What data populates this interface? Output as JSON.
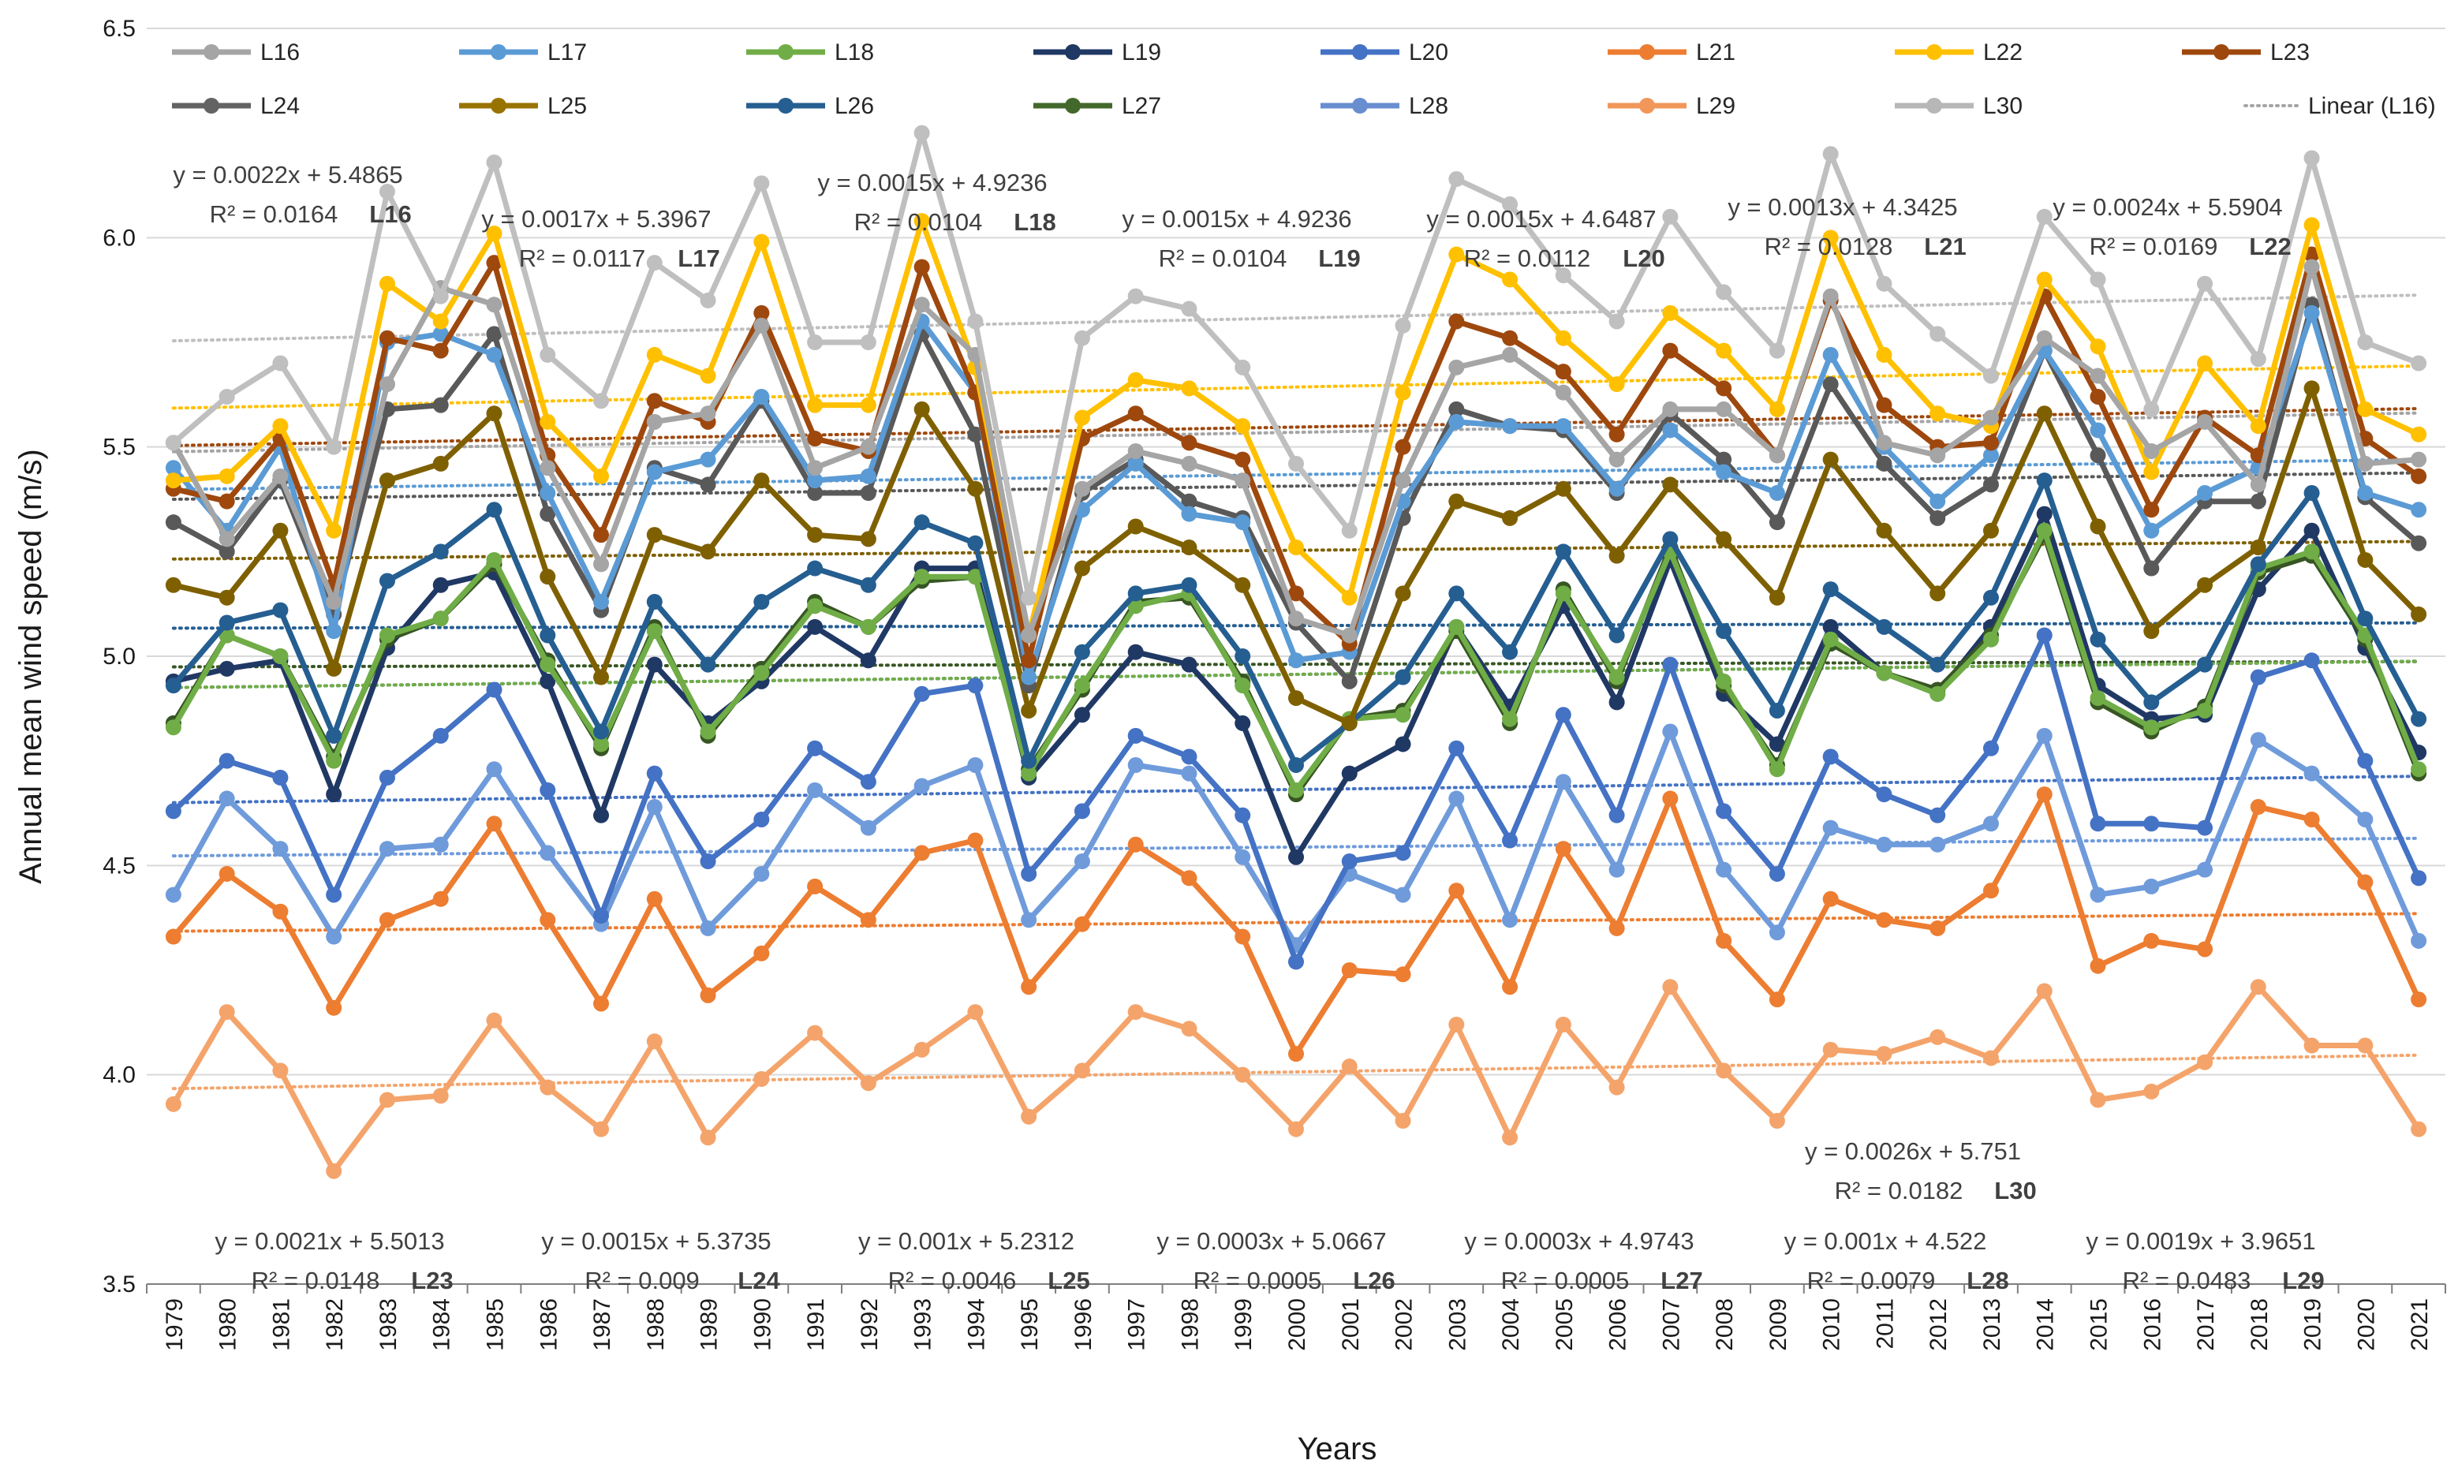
{
  "chart_data": {
    "type": "line",
    "title": "",
    "xlabel": "Years",
    "ylabel": "Annual mean wind speed (m/s)",
    "ylim": [
      3.5,
      6.5
    ],
    "yticks": [
      "3.5",
      "4.0",
      "4.5",
      "5.0",
      "5.5",
      "6.0",
      "6.5"
    ],
    "grid": "horizontal",
    "legend_position": "top",
    "x": [
      "1979",
      "1980",
      "1981",
      "1982",
      "1983",
      "1984",
      "1985",
      "1986",
      "1987",
      "1988",
      "1989",
      "1990",
      "1991",
      "1992",
      "1993",
      "1994",
      "1995",
      "1996",
      "1997",
      "1998",
      "1999",
      "2000",
      "2001",
      "2002",
      "2003",
      "2004",
      "2005",
      "2006",
      "2007",
      "2008",
      "2009",
      "2010",
      "2011",
      "2012",
      "2013",
      "2014",
      "2015",
      "2016",
      "2017",
      "2018",
      "2019",
      "2020",
      "2021"
    ],
    "series": [
      {
        "name": "L29",
        "color": "#F4A46B",
        "trend": {
          "slope": 0.0019,
          "intercept": 3.9651
        },
        "values": [
          3.93,
          4.15,
          4.01,
          3.77,
          3.94,
          3.95,
          4.13,
          3.97,
          3.87,
          4.08,
          3.85,
          3.99,
          4.1,
          3.98,
          4.06,
          4.15,
          3.9,
          4.01,
          4.15,
          4.11,
          4.0,
          3.87,
          4.02,
          3.89,
          4.12,
          3.85,
          4.12,
          3.97,
          4.21,
          4.01,
          3.89,
          4.06,
          4.05,
          4.09,
          4.04,
          4.2,
          3.94,
          3.96,
          4.03,
          4.21,
          4.07,
          4.07,
          3.87
        ]
      },
      {
        "name": "L21",
        "color": "#ED7D31",
        "trend": {
          "slope": 0.001,
          "intercept": 4.342
        },
        "values": [
          4.33,
          4.48,
          4.39,
          4.16,
          4.37,
          4.42,
          4.6,
          4.37,
          4.17,
          4.42,
          4.19,
          4.29,
          4.45,
          4.37,
          4.53,
          4.56,
          4.21,
          4.36,
          4.55,
          4.47,
          4.33,
          4.05,
          4.25,
          4.24,
          4.44,
          4.21,
          4.54,
          4.35,
          4.66,
          4.32,
          4.18,
          4.42,
          4.37,
          4.35,
          4.44,
          4.67,
          4.26,
          4.32,
          4.3,
          4.64,
          4.61,
          4.46,
          4.18
        ]
      },
      {
        "name": "L28",
        "color": "#6F9BDB",
        "trend": {
          "slope": 0.001,
          "intercept": 4.522
        },
        "values": [
          4.43,
          4.66,
          4.54,
          4.33,
          4.54,
          4.55,
          4.73,
          4.53,
          4.36,
          4.64,
          4.35,
          4.48,
          4.68,
          4.59,
          4.69,
          4.74,
          4.37,
          4.51,
          4.74,
          4.72,
          4.52,
          4.31,
          4.48,
          4.43,
          4.66,
          4.37,
          4.7,
          4.49,
          4.82,
          4.49,
          4.34,
          4.59,
          4.55,
          4.55,
          4.6,
          4.81,
          4.43,
          4.45,
          4.49,
          4.8,
          4.72,
          4.61,
          4.32
        ]
      },
      {
        "name": "L20",
        "color": "#4472C4",
        "trend": {
          "slope": 0.0015,
          "intercept": 4.6487
        },
        "values": [
          4.63,
          4.75,
          4.71,
          4.43,
          4.71,
          4.81,
          4.92,
          4.68,
          4.38,
          4.72,
          4.51,
          4.61,
          4.78,
          4.7,
          4.91,
          4.93,
          4.48,
          4.63,
          4.81,
          4.76,
          4.62,
          4.27,
          4.51,
          4.53,
          4.78,
          4.56,
          4.86,
          4.62,
          4.98,
          4.63,
          4.48,
          4.76,
          4.67,
          4.62,
          4.78,
          5.05,
          4.6,
          4.6,
          4.59,
          4.95,
          4.99,
          4.75,
          4.47
        ]
      },
      {
        "name": "L19",
        "color": "#203864",
        "trend": {
          "slope": 0.0015,
          "intercept": 4.9236
        },
        "values": [
          4.94,
          4.97,
          4.99,
          4.67,
          5.02,
          5.17,
          5.2,
          4.94,
          4.62,
          4.98,
          4.84,
          4.94,
          5.07,
          4.99,
          5.21,
          5.21,
          4.71,
          4.86,
          5.01,
          4.98,
          4.84,
          4.52,
          4.72,
          4.79,
          5.07,
          4.88,
          5.12,
          4.89,
          5.23,
          4.91,
          4.79,
          5.07,
          4.96,
          4.91,
          5.07,
          5.34,
          4.93,
          4.85,
          4.86,
          5.16,
          5.3,
          5.02,
          4.77
        ]
      },
      {
        "name": "L27",
        "color": "#375623",
        "trend": {
          "slope": 0.0003,
          "intercept": 4.9743
        },
        "values": [
          4.84,
          5.05,
          5.0,
          4.76,
          5.04,
          5.09,
          5.22,
          4.99,
          4.78,
          5.07,
          4.81,
          4.97,
          5.13,
          5.07,
          5.18,
          5.19,
          4.73,
          4.92,
          5.13,
          5.14,
          4.94,
          4.67,
          4.85,
          4.87,
          5.06,
          4.84,
          5.16,
          4.94,
          5.26,
          4.93,
          4.74,
          5.03,
          4.96,
          4.92,
          5.05,
          5.29,
          4.89,
          4.82,
          4.88,
          5.2,
          5.24,
          5.04,
          4.72
        ]
      },
      {
        "name": "L18",
        "color": "#70AD47",
        "trend": {
          "slope": 0.0015,
          "intercept": 4.9236
        },
        "values": [
          4.83,
          5.05,
          5.0,
          4.75,
          5.05,
          5.09,
          5.23,
          4.98,
          4.79,
          5.06,
          4.82,
          4.96,
          5.12,
          5.07,
          5.19,
          5.19,
          4.72,
          4.93,
          5.12,
          5.15,
          4.93,
          4.68,
          4.85,
          4.86,
          5.07,
          4.85,
          5.15,
          4.95,
          5.25,
          4.94,
          4.73,
          5.04,
          4.96,
          4.91,
          5.04,
          5.3,
          4.9,
          4.83,
          4.87,
          5.21,
          5.25,
          5.05,
          4.73
        ]
      },
      {
        "name": "L26",
        "color": "#255E91",
        "trend": {
          "slope": 0.0003,
          "intercept": 5.0667
        },
        "values": [
          4.93,
          5.08,
          5.11,
          4.81,
          5.18,
          5.25,
          5.35,
          5.05,
          4.82,
          5.13,
          4.98,
          5.13,
          5.21,
          5.17,
          5.32,
          5.27,
          4.75,
          5.01,
          5.15,
          5.17,
          5.0,
          4.74,
          4.84,
          4.95,
          5.15,
          5.01,
          5.25,
          5.05,
          5.28,
          5.06,
          4.87,
          5.16,
          5.07,
          4.98,
          5.14,
          5.42,
          5.04,
          4.89,
          4.98,
          5.22,
          5.39,
          5.09,
          4.85
        ]
      },
      {
        "name": "L25",
        "color": "#7F6000",
        "trend": {
          "slope": 0.001,
          "intercept": 5.2312
        },
        "values": [
          5.17,
          5.14,
          5.3,
          4.97,
          5.42,
          5.46,
          5.58,
          5.19,
          4.95,
          5.29,
          5.25,
          5.42,
          5.29,
          5.28,
          5.59,
          5.4,
          4.87,
          5.21,
          5.31,
          5.26,
          5.17,
          4.9,
          4.84,
          5.15,
          5.37,
          5.33,
          5.4,
          5.24,
          5.41,
          5.28,
          5.14,
          5.47,
          5.3,
          5.15,
          5.3,
          5.58,
          5.31,
          5.06,
          5.17,
          5.26,
          5.64,
          5.23,
          5.1
        ]
      },
      {
        "name": "L24",
        "color": "#595959",
        "trend": {
          "slope": 0.0015,
          "intercept": 5.3735
        },
        "values": [
          5.32,
          5.25,
          5.42,
          5.1,
          5.59,
          5.6,
          5.77,
          5.34,
          5.11,
          5.45,
          5.41,
          5.61,
          5.39,
          5.39,
          5.77,
          5.53,
          4.93,
          5.39,
          5.47,
          5.37,
          5.33,
          5.08,
          4.94,
          5.33,
          5.59,
          5.55,
          5.54,
          5.39,
          5.58,
          5.47,
          5.32,
          5.65,
          5.46,
          5.33,
          5.41,
          5.73,
          5.48,
          5.21,
          5.37,
          5.37,
          5.84,
          5.38,
          5.27
        ]
      },
      {
        "name": "L17",
        "color": "#5B9BD5",
        "trend": {
          "slope": 0.0017,
          "intercept": 5.3967
        },
        "values": [
          5.45,
          5.3,
          5.5,
          5.06,
          5.75,
          5.77,
          5.72,
          5.39,
          5.13,
          5.44,
          5.47,
          5.62,
          5.42,
          5.43,
          5.8,
          5.63,
          4.95,
          5.35,
          5.46,
          5.34,
          5.32,
          4.99,
          5.01,
          5.37,
          5.56,
          5.55,
          5.55,
          5.4,
          5.54,
          5.44,
          5.39,
          5.72,
          5.5,
          5.37,
          5.48,
          5.73,
          5.54,
          5.3,
          5.39,
          5.45,
          5.82,
          5.39,
          5.35
        ]
      },
      {
        "name": "L23",
        "color": "#9E480E",
        "trend": {
          "slope": 0.0021,
          "intercept": 5.5013
        },
        "values": [
          5.4,
          5.37,
          5.52,
          5.17,
          5.76,
          5.73,
          5.94,
          5.48,
          5.29,
          5.61,
          5.56,
          5.82,
          5.52,
          5.49,
          5.93,
          5.63,
          4.99,
          5.52,
          5.58,
          5.51,
          5.47,
          5.15,
          5.03,
          5.5,
          5.8,
          5.76,
          5.68,
          5.53,
          5.73,
          5.64,
          5.48,
          5.85,
          5.6,
          5.5,
          5.51,
          5.86,
          5.62,
          5.35,
          5.57,
          5.48,
          5.96,
          5.52,
          5.43
        ]
      },
      {
        "name": "L22",
        "color": "#FFC000",
        "trend": {
          "slope": 0.0024,
          "intercept": 5.5904
        },
        "values": [
          5.42,
          5.43,
          5.55,
          5.3,
          5.89,
          5.8,
          6.01,
          5.56,
          5.43,
          5.72,
          5.67,
          5.99,
          5.6,
          5.6,
          6.04,
          5.69,
          5.05,
          5.57,
          5.66,
          5.64,
          5.55,
          5.26,
          5.14,
          5.63,
          5.96,
          5.9,
          5.76,
          5.65,
          5.82,
          5.73,
          5.59,
          6.0,
          5.72,
          5.58,
          5.55,
          5.9,
          5.74,
          5.44,
          5.7,
          5.55,
          6.03,
          5.59,
          5.53
        ]
      },
      {
        "name": "L16",
        "color": "#A5A5A5",
        "trend": {
          "slope": 0.0022,
          "intercept": 5.4865
        },
        "values": [
          5.51,
          5.28,
          5.43,
          5.13,
          5.65,
          5.88,
          5.84,
          5.45,
          5.22,
          5.56,
          5.58,
          5.79,
          5.45,
          5.5,
          5.84,
          5.72,
          5.05,
          5.4,
          5.49,
          5.46,
          5.42,
          5.09,
          5.05,
          5.42,
          5.69,
          5.72,
          5.63,
          5.47,
          5.59,
          5.59,
          5.48,
          5.86,
          5.51,
          5.48,
          5.57,
          5.76,
          5.67,
          5.49,
          5.56,
          5.41,
          5.93,
          5.46,
          5.47
        ]
      },
      {
        "name": "L30",
        "color": "#BFBFBF",
        "trend": {
          "slope": 0.0026,
          "intercept": 5.751
        },
        "values": [
          5.51,
          5.62,
          5.7,
          5.5,
          6.11,
          5.86,
          6.18,
          5.72,
          5.61,
          5.94,
          5.85,
          6.13,
          5.75,
          5.75,
          6.25,
          5.8,
          5.14,
          5.76,
          5.86,
          5.83,
          5.69,
          5.46,
          5.3,
          5.79,
          6.14,
          6.08,
          5.91,
          5.8,
          6.05,
          5.87,
          5.73,
          6.2,
          5.89,
          5.77,
          5.67,
          6.05,
          5.9,
          5.59,
          5.89,
          5.71,
          6.19,
          5.75,
          5.7
        ]
      }
    ],
    "legend": [
      {
        "name": "L16",
        "color": "#A5A5A5",
        "style": "line-marker"
      },
      {
        "name": "L17",
        "color": "#5B9BD5",
        "style": "line-marker"
      },
      {
        "name": "L18",
        "color": "#70AD47",
        "style": "line-marker"
      },
      {
        "name": "L19",
        "color": "#203864",
        "style": "line-marker"
      },
      {
        "name": "L20",
        "color": "#4472C4",
        "style": "line-marker"
      },
      {
        "name": "L21",
        "color": "#ED7D31",
        "style": "line-marker"
      },
      {
        "name": "L22",
        "color": "#FFC000",
        "style": "line-marker"
      },
      {
        "name": "L23",
        "color": "#9E480E",
        "style": "line-marker"
      },
      {
        "name": "L24",
        "color": "#636363",
        "style": "line-marker"
      },
      {
        "name": "L25",
        "color": "#997300",
        "style": "line-marker"
      },
      {
        "name": "L26",
        "color": "#255E91",
        "style": "line-marker"
      },
      {
        "name": "L27",
        "color": "#43682B",
        "style": "line-marker"
      },
      {
        "name": "L28",
        "color": "#698ED0",
        "style": "line-marker"
      },
      {
        "name": "L29",
        "color": "#F1975A",
        "style": "line-marker"
      },
      {
        "name": "L30",
        "color": "#B7B7B7",
        "style": "line-marker"
      },
      {
        "name": "Linear (L16)",
        "color": "#A5A5A5",
        "style": "dotted"
      }
    ],
    "annotations": [
      {
        "eq": "y = 0.0022x + 5.4865",
        "r2": "R² = 0.0164",
        "tag": "L16"
      },
      {
        "eq": "y = 0.0017x + 5.3967",
        "r2": "R² = 0.0117",
        "tag": "L17"
      },
      {
        "eq": "y = 0.0015x + 4.9236",
        "r2": "R² = 0.0104",
        "tag": "L18"
      },
      {
        "eq": "y = 0.0015x + 4.9236",
        "r2": "R² = 0.0104",
        "tag": "L19"
      },
      {
        "eq": "y = 0.0015x + 4.6487",
        "r2": "R² = 0.0112",
        "tag": "L20"
      },
      {
        "eq": "y = 0.0013x + 4.3425",
        "r2": "R² = 0.0128",
        "tag": "L21"
      },
      {
        "eq": "y = 0.0024x + 5.5904",
        "r2": "R² = 0.0169",
        "tag": "L22"
      },
      {
        "eq": "y = 0.0026x + 5.751",
        "r2": "R² = 0.0182",
        "tag": "L30"
      },
      {
        "eq": "y = 0.0021x + 5.5013",
        "r2": "R² = 0.0148",
        "tag": "L23"
      },
      {
        "eq": "y = 0.0015x + 5.3735",
        "r2": "R² = 0.009",
        "tag": "L24"
      },
      {
        "eq": "y = 0.001x + 5.2312",
        "r2": "R² = 0.0046",
        "tag": "L25"
      },
      {
        "eq": "y = 0.0003x + 5.0667",
        "r2": "R² = 0.0005",
        "tag": "L26"
      },
      {
        "eq": "y = 0.0003x + 4.9743",
        "r2": "R² = 0.0005",
        "tag": "L27"
      },
      {
        "eq": "y = 0.001x + 4.522",
        "r2": "R² = 0.0079",
        "tag": "L28"
      },
      {
        "eq": "y = 0.0019x + 3.9651",
        "r2": "R² = 0.0483",
        "tag": "L29"
      }
    ]
  }
}
